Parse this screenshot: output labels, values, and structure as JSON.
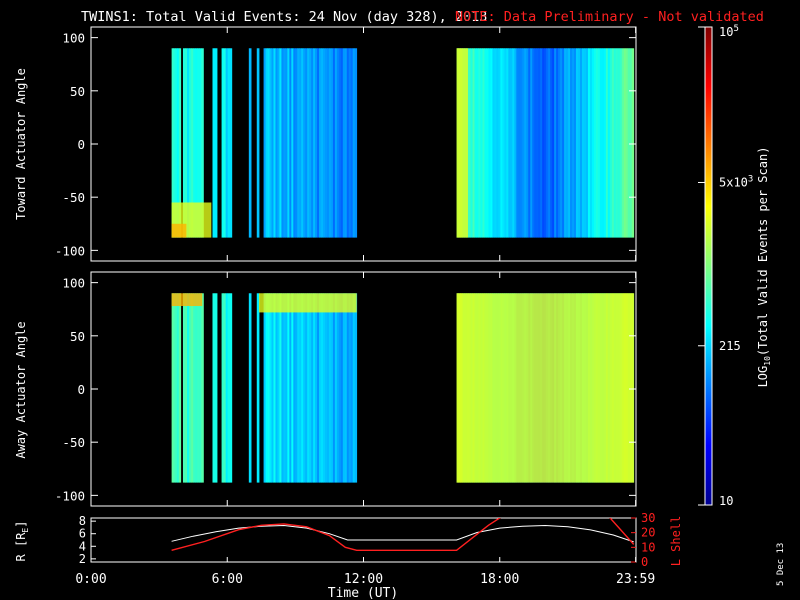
{
  "title": {
    "main": "TWINS1: Total Valid Events: 24 Nov (day 328), 2013",
    "note": "NOTE: Data Preliminary - Not validated"
  },
  "colors": {
    "background": "#000000",
    "axes": "#ffffff",
    "note": "#ff2020",
    "lshell": "#ff2020",
    "radius": "#ffffff"
  },
  "side_stamp": "5 Dec 13",
  "chart_data": [
    {
      "type": "heatmap",
      "id": "toward",
      "ylabel": "Toward Actuator Angle",
      "ylim": [
        -110,
        110
      ],
      "yticks": [
        100,
        50,
        0,
        -50,
        -100
      ],
      "xlim": [
        0,
        24
      ],
      "angle_range": [
        -88,
        90
      ],
      "segments": [
        [
          3.55,
          3.95
        ],
        [
          4.05,
          4.95
        ],
        [
          5.35,
          5.55
        ],
        [
          5.75,
          6.2
        ],
        [
          6.95,
          7.05
        ],
        [
          7.3,
          7.4
        ],
        [
          7.6,
          11.7
        ],
        [
          16.1,
          23.9
        ]
      ],
      "features": [
        {
          "start_hr": 3.55,
          "end_hr": 5.3,
          "angle_lo": -88,
          "angle_hi": -55,
          "level": "high"
        },
        {
          "start_hr": 3.55,
          "end_hr": 4.2,
          "angle_lo": -88,
          "angle_hi": -75,
          "level": "peak"
        },
        {
          "start_hr": 16.1,
          "end_hr": 16.6,
          "angle_lo": -88,
          "angle_hi": 90,
          "level": "high"
        }
      ]
    },
    {
      "type": "heatmap",
      "id": "away",
      "ylabel": "Away Actuator Angle",
      "ylim": [
        -110,
        110
      ],
      "yticks": [
        100,
        50,
        0,
        -50,
        -100
      ],
      "xlim": [
        0,
        24
      ],
      "angle_range": [
        -88,
        90
      ],
      "segments": [
        [
          3.55,
          3.95
        ],
        [
          4.05,
          4.95
        ],
        [
          5.35,
          5.55
        ],
        [
          5.75,
          6.2
        ],
        [
          6.95,
          7.05
        ],
        [
          7.3,
          7.4
        ],
        [
          7.6,
          11.7
        ],
        [
          16.1,
          23.9
        ]
      ],
      "features": [
        {
          "start_hr": 3.55,
          "end_hr": 4.9,
          "angle_lo": 78,
          "angle_hi": 90,
          "level": "peak"
        },
        {
          "start_hr": 7.4,
          "end_hr": 11.7,
          "angle_lo": 72,
          "angle_hi": 90,
          "level": "high"
        },
        {
          "start_hr": 16.1,
          "end_hr": 23.9,
          "angle_lo": -88,
          "angle_hi": 90,
          "level": "high"
        }
      ]
    },
    {
      "type": "line",
      "id": "orbit",
      "ylabel": "R [RE]",
      "ylabel_parts": {
        "main": "R [R",
        "sub": "E",
        "close": "]"
      },
      "ylabel_right": "L Shell",
      "ylim": [
        1.5,
        8.5
      ],
      "yticks": [
        2,
        4,
        6,
        8
      ],
      "ylim_right": [
        0,
        30
      ],
      "yticks_right": [
        0,
        10,
        20,
        30
      ],
      "xlim": [
        0,
        24
      ],
      "xticks": [
        0,
        6,
        12,
        18,
        23.983
      ],
      "xtick_labels": [
        "0:00",
        "6:00",
        "12:00",
        "18:00",
        "23:59"
      ],
      "xlabel": "Time (UT)",
      "series": [
        {
          "id": "radius",
          "x": [
            3.55,
            4.5,
            5.5,
            6.5,
            7.5,
            8.5,
            9.5,
            10.5,
            11.3,
            16.1,
            17,
            18,
            19,
            20,
            21,
            22,
            23,
            23.9
          ],
          "y": [
            4.8,
            5.6,
            6.3,
            6.9,
            7.2,
            7.3,
            6.9,
            6.0,
            5.0,
            5.0,
            6.2,
            6.9,
            7.2,
            7.3,
            7.1,
            6.6,
            5.8,
            4.7
          ]
        },
        {
          "id": "lshell",
          "x": [
            3.55,
            5,
            6.5,
            7.5,
            8.5,
            9.5,
            10.5,
            11.2,
            11.7,
            16.1,
            17.5,
            18.1,
            22.8,
            23.9
          ],
          "y": [
            8,
            14,
            22,
            25,
            26,
            24,
            18,
            10,
            8,
            8,
            25,
            31,
            31,
            12
          ]
        }
      ]
    }
  ],
  "colorbar": {
    "label_main": "LOG",
    "label_sub": "10",
    "label_rest": "(Total Valid Events per Scan)",
    "scale": "log",
    "min": 10,
    "max": 100000,
    "ticks": [
      {
        "value": 10,
        "base": "10",
        "exp": ""
      },
      {
        "value": 215,
        "base": "215",
        "exp": ""
      },
      {
        "value": 5000,
        "base": "5x10",
        "exp": "3"
      },
      {
        "value": 100000,
        "base": "10",
        "exp": "5"
      }
    ]
  }
}
